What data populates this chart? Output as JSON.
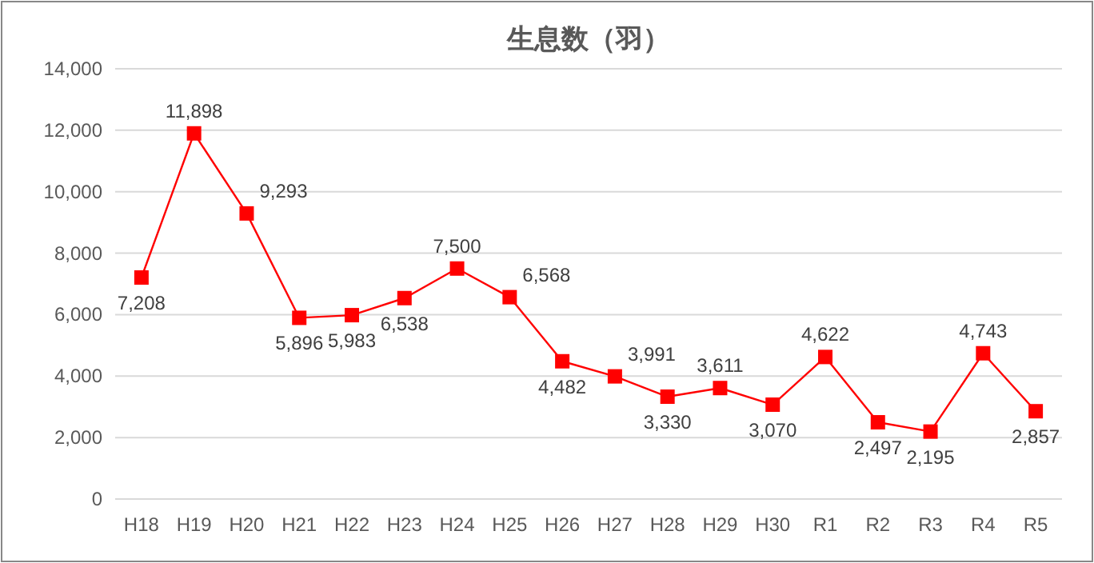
{
  "chart_data": {
    "type": "line",
    "title": "生息数（羽）",
    "categories": [
      "H18",
      "H19",
      "H20",
      "H21",
      "H22",
      "H23",
      "H24",
      "H25",
      "H26",
      "H27",
      "H28",
      "H29",
      "H30",
      "R1",
      "R2",
      "R3",
      "R4",
      "R5"
    ],
    "series": [
      {
        "color": "#ff0000",
        "values": [
          7208,
          11898,
          9293,
          5896,
          5983,
          6538,
          7500,
          6568,
          4482,
          3991,
          3330,
          3611,
          3070,
          4622,
          2497,
          2195,
          4743,
          2857
        ],
        "value_labels": [
          "7,208",
          "11,898",
          "9,293",
          "5,896",
          "5,983",
          "6,538",
          "7,500",
          "6,568",
          "4,482",
          "3,991",
          "3,330",
          "3,611",
          "3,070",
          "4,622",
          "2,497",
          "2,195",
          "4,743",
          "2,857"
        ]
      }
    ],
    "ylim": [
      0,
      14000
    ],
    "yticks": [
      {
        "value": 0,
        "label": "0"
      },
      {
        "value": 2000,
        "label": "2,000"
      },
      {
        "value": 4000,
        "label": "4,000"
      },
      {
        "value": 6000,
        "label": "6,000"
      },
      {
        "value": 8000,
        "label": "8,000"
      },
      {
        "value": 10000,
        "label": "10,000"
      },
      {
        "value": 12000,
        "label": "12,000"
      },
      {
        "value": 14000,
        "label": "14,000"
      }
    ],
    "grid": "y",
    "marker": "square",
    "line_style": "solid"
  }
}
